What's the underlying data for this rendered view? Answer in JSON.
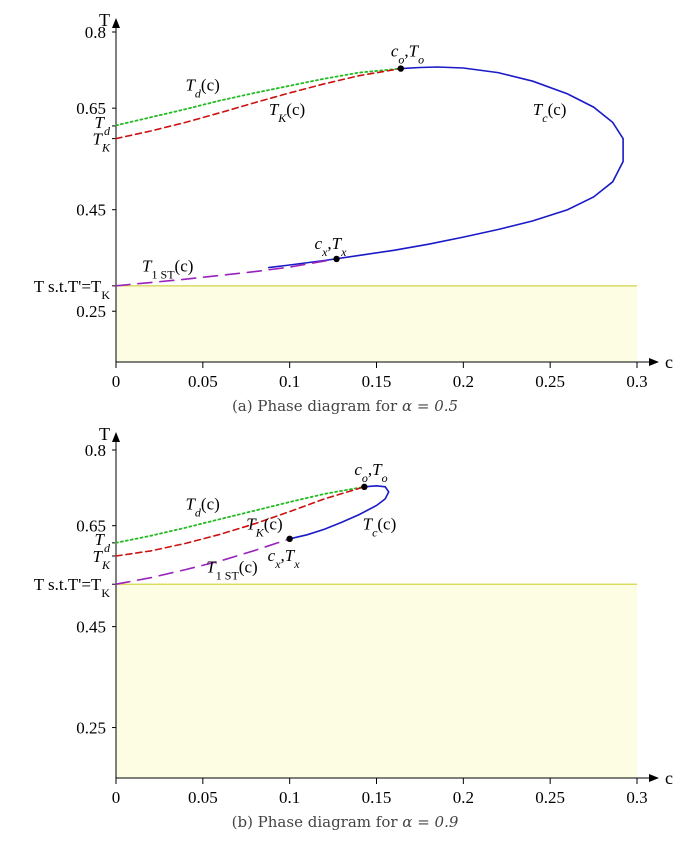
{
  "chart_data": [
    {
      "type": "line",
      "caption_text": "(a) Phase diagram for ",
      "caption_alpha": "α = 0.5",
      "xlabel": "c",
      "ylabel": "T",
      "xlim": [
        0,
        0.3
      ],
      "ylim": [
        0.15,
        0.8
      ],
      "x_ticks": [
        "0",
        "0.05",
        "0.1",
        "0.15",
        "0.2",
        "0.25",
        "0.3"
      ],
      "x_tick_values": [
        0,
        0.05,
        0.1,
        0.15,
        0.2,
        0.25,
        0.3
      ],
      "y_ticks": [
        "0.25",
        "0.45",
        "0.65",
        "0.8"
      ],
      "y_tick_values": [
        0.25,
        0.45,
        0.65,
        0.8
      ],
      "y_special_labels": [
        {
          "text": "T",
          "sub": "d",
          "y": 0.615
        },
        {
          "text": "T",
          "sub": "K",
          "y": 0.59
        },
        {
          "text": "T s.t.T'=T",
          "sub": "K",
          "y": 0.3
        }
      ],
      "shaded_region": {
        "y_from": 0.15,
        "y_to": 0.3,
        "color": "#fdfde3",
        "edge_color": "#d4d44a"
      },
      "series": [
        {
          "id": "Td",
          "label": "T",
          "sub": "d",
          "suffix": "(c)",
          "color": "#22bb22",
          "style": "dotted",
          "x": [
            0,
            0.02,
            0.04,
            0.06,
            0.08,
            0.1,
            0.12,
            0.14,
            0.164
          ],
          "y": [
            0.616,
            0.632,
            0.648,
            0.665,
            0.68,
            0.694,
            0.708,
            0.72,
            0.728
          ]
        },
        {
          "id": "TK",
          "label": "T",
          "sub": "K",
          "suffix": "(c)",
          "color": "#cc1111",
          "style": "dashed",
          "x": [
            0,
            0.02,
            0.04,
            0.06,
            0.08,
            0.1,
            0.12,
            0.14,
            0.164
          ],
          "y": [
            0.59,
            0.605,
            0.622,
            0.641,
            0.661,
            0.68,
            0.698,
            0.714,
            0.728
          ]
        },
        {
          "id": "Tc",
          "label": "T",
          "sub": "c",
          "suffix": "(c)",
          "color": "#1a1ac8",
          "style": "solid",
          "x": [
            0.164,
            0.175,
            0.185,
            0.2,
            0.22,
            0.24,
            0.26,
            0.275,
            0.286,
            0.292,
            0.292,
            0.286,
            0.275,
            0.26,
            0.24,
            0.22,
            0.2,
            0.18,
            0.16,
            0.14,
            0.12,
            0.1,
            0.088
          ],
          "y": [
            0.728,
            0.73,
            0.731,
            0.729,
            0.72,
            0.703,
            0.678,
            0.652,
            0.622,
            0.59,
            0.545,
            0.505,
            0.475,
            0.45,
            0.428,
            0.411,
            0.396,
            0.382,
            0.37,
            0.36,
            0.35,
            0.341,
            0.336
          ]
        },
        {
          "id": "T1ST",
          "label": "T",
          "sub": "1 ST",
          "suffix": "(c)",
          "color": "#9922bb",
          "style": "longdash",
          "x": [
            0,
            0.04,
            0.08,
            0.1,
            0.127
          ],
          "y": [
            0.3,
            0.313,
            0.328,
            0.337,
            0.353
          ]
        }
      ],
      "points": [
        {
          "label": "c",
          "sub": "o",
          "label2": "T",
          "sub2": "o",
          "x": 0.164,
          "y": 0.728
        },
        {
          "label": "c",
          "sub": "x",
          "label2": "T",
          "sub2": "x",
          "x": 0.127,
          "y": 0.353
        }
      ],
      "series_labels": [
        {
          "series": "Td",
          "x": 0.04,
          "y": 0.685
        },
        {
          "series": "TK",
          "x": 0.088,
          "y": 0.637
        },
        {
          "series": "Tc",
          "x": 0.24,
          "y": 0.637
        },
        {
          "series": "T1ST",
          "x": 0.015,
          "y": 0.328
        }
      ]
    },
    {
      "type": "line",
      "caption_text": "(b) Phase diagram for ",
      "caption_alpha": "α = 0.9",
      "xlabel": "c",
      "ylabel": "T",
      "xlim": [
        0,
        0.3
      ],
      "ylim": [
        0.15,
        0.8
      ],
      "x_ticks": [
        "0",
        "0.05",
        "0.1",
        "0.15",
        "0.2",
        "0.25",
        "0.3"
      ],
      "x_tick_values": [
        0,
        0.05,
        0.1,
        0.15,
        0.2,
        0.25,
        0.3
      ],
      "y_ticks": [
        "0.25",
        "0.45",
        "0.65",
        "0.8"
      ],
      "y_tick_values": [
        0.25,
        0.45,
        0.65,
        0.8
      ],
      "y_special_labels": [
        {
          "text": "T",
          "sub": "d",
          "y": 0.616
        },
        {
          "text": "T",
          "sub": "K",
          "y": 0.59
        },
        {
          "text": "T s.t.T'=T",
          "sub": "K",
          "y": 0.534
        }
      ],
      "shaded_region": {
        "y_from": 0.15,
        "y_to": 0.534,
        "color": "#fdfde3",
        "edge_color": "#d4d44a"
      },
      "series": [
        {
          "id": "Td",
          "label": "T",
          "sub": "d",
          "suffix": "(c)",
          "color": "#22bb22",
          "style": "dotted",
          "x": [
            0,
            0.02,
            0.04,
            0.06,
            0.08,
            0.1,
            0.12,
            0.143
          ],
          "y": [
            0.616,
            0.63,
            0.646,
            0.663,
            0.68,
            0.697,
            0.713,
            0.727
          ]
        },
        {
          "id": "TK",
          "label": "T",
          "sub": "K",
          "suffix": "(c)",
          "color": "#cc1111",
          "style": "dashed",
          "x": [
            0,
            0.02,
            0.04,
            0.06,
            0.08,
            0.1,
            0.12,
            0.143
          ],
          "y": [
            0.59,
            0.6,
            0.615,
            0.633,
            0.654,
            0.678,
            0.703,
            0.727
          ]
        },
        {
          "id": "Tc",
          "label": "T",
          "sub": "c",
          "suffix": "(c)",
          "color": "#1a1ac8",
          "style": "solid",
          "x": [
            0.143,
            0.15,
            0.155,
            0.157,
            0.155,
            0.15,
            0.14,
            0.13,
            0.12,
            0.11,
            0.1
          ],
          "y": [
            0.727,
            0.729,
            0.727,
            0.717,
            0.703,
            0.69,
            0.672,
            0.657,
            0.643,
            0.632,
            0.624
          ]
        },
        {
          "id": "T1ST",
          "label": "T",
          "sub": "1 ST",
          "suffix": "(c)",
          "color": "#9922bb",
          "style": "longdash",
          "x": [
            0,
            0.02,
            0.04,
            0.06,
            0.08,
            0.1
          ],
          "y": [
            0.534,
            0.547,
            0.563,
            0.58,
            0.601,
            0.624
          ]
        }
      ],
      "points": [
        {
          "label": "c",
          "sub": "o",
          "label2": "T",
          "sub2": "o",
          "x": 0.143,
          "y": 0.727
        },
        {
          "label": "c",
          "sub": "x",
          "label2": "T",
          "sub2": "x",
          "x": 0.1,
          "y": 0.624
        }
      ],
      "series_labels": [
        {
          "series": "Td",
          "x": 0.04,
          "y": 0.682
        },
        {
          "series": "TK",
          "x": 0.075,
          "y": 0.642
        },
        {
          "series": "Tc",
          "x": 0.142,
          "y": 0.642
        },
        {
          "series": "T1ST",
          "x": 0.052,
          "y": 0.557
        }
      ]
    }
  ]
}
